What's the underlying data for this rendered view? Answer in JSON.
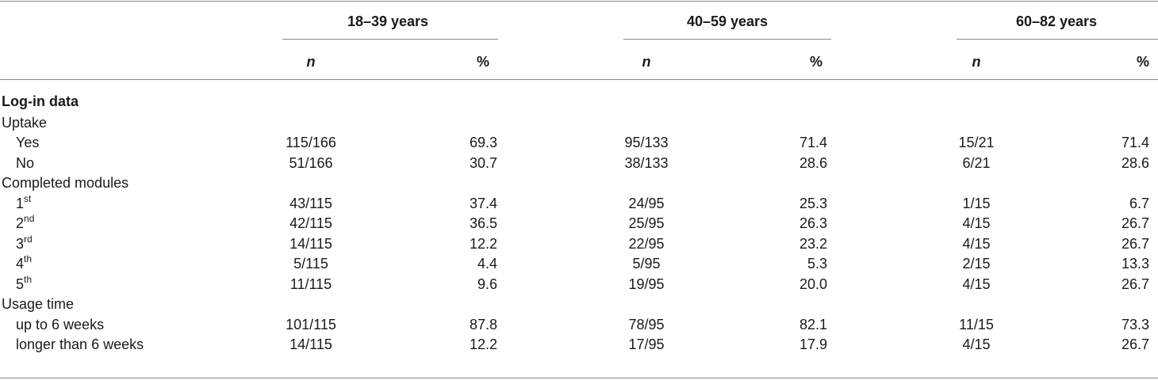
{
  "groups": [
    "18–39 years",
    "40–59 years",
    "60–82 years"
  ],
  "subheaders": {
    "n": "n",
    "pct": "%"
  },
  "section_title": "Log-in data",
  "rows": [
    {
      "kind": "category",
      "label": "Uptake"
    },
    {
      "kind": "data",
      "label": "Yes",
      "cells": [
        "115/166",
        "69.3",
        "95/133",
        "71.4",
        "15/21",
        "71.4"
      ]
    },
    {
      "kind": "data",
      "label": "No",
      "cells": [
        "51/166",
        "30.7",
        "38/133",
        "28.6",
        "6/21",
        "28.6"
      ]
    },
    {
      "kind": "category",
      "label": "Completed modules"
    },
    {
      "kind": "data",
      "label": "1",
      "sup": "st",
      "cells": [
        "43/115",
        "37.4",
        "24/95",
        "25.3",
        "1/15",
        "6.7"
      ]
    },
    {
      "kind": "data",
      "label": "2",
      "sup": "nd",
      "cells": [
        "42/115",
        "36.5",
        "25/95",
        "26.3",
        "4/15",
        "26.7"
      ]
    },
    {
      "kind": "data",
      "label": "3",
      "sup": "rd",
      "cells": [
        "14/115",
        "12.2",
        "22/95",
        "23.2",
        "4/15",
        "26.7"
      ]
    },
    {
      "kind": "data",
      "label": "4",
      "sup": "th",
      "cells": [
        "5/115",
        "4.4",
        "5/95",
        "5.3",
        "2/15",
        "13.3"
      ]
    },
    {
      "kind": "data",
      "label": "5",
      "sup": "th",
      "cells": [
        "11/115",
        "9.6",
        "19/95",
        "20.0",
        "4/15",
        "26.7"
      ]
    },
    {
      "kind": "category",
      "label": "Usage time"
    },
    {
      "kind": "data",
      "label": "up to 6 weeks",
      "cells": [
        "101/115",
        "87.8",
        "78/95",
        "82.1",
        "11/15",
        "73.3"
      ]
    },
    {
      "kind": "data",
      "label": "longer than 6 weeks",
      "cells": [
        "14/115",
        "12.2",
        "17/95",
        "17.9",
        "4/15",
        "26.7"
      ]
    }
  ]
}
